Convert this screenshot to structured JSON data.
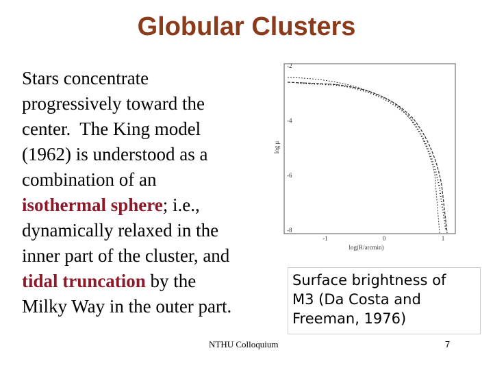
{
  "title": "Globular Clusters",
  "body": {
    "lines": [
      [
        {
          "text": "Stars concentrate"
        }
      ],
      [
        {
          "text": "progressively toward the"
        }
      ],
      [
        {
          "text": "center.  The King model"
        }
      ],
      [
        {
          "text": "(1962) is understood as a"
        }
      ],
      [
        {
          "text": "combination of an"
        }
      ],
      [
        {
          "text": "isothermal sphere",
          "emphasis": true
        },
        {
          "text": "; i.e.,"
        }
      ],
      [
        {
          "text": "dynamically relaxed in the"
        }
      ],
      [
        {
          "text": "inner part of the cluster, and"
        }
      ],
      [
        {
          "text": "tidal truncation",
          "emphasis": true
        },
        {
          "text": " by the"
        }
      ],
      [
        {
          "text": "Milky Way in the outer part."
        }
      ]
    ]
  },
  "figure": {
    "y_ticks": [
      "-2",
      "-4",
      "-6",
      "-8"
    ],
    "x_ticks": [
      "-1",
      "0",
      "1"
    ],
    "y_label": "log μ",
    "x_label": "log(R/arcmin)"
  },
  "caption": {
    "lines": [
      "Surface brightness of",
      "M3 (Da Costa and",
      "Freeman, 1976)"
    ]
  },
  "footer": {
    "text": "NTHU Colloquium",
    "page": "7"
  }
}
